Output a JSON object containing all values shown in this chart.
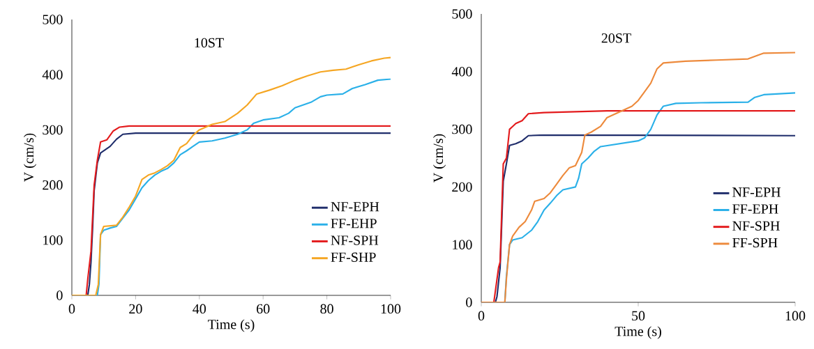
{
  "chart_data": [
    {
      "type": "line",
      "title": "10ST",
      "xlabel": "Time (s)",
      "ylabel": "V (cm/s)",
      "xlim": [
        0,
        100
      ],
      "ylim": [
        0,
        500
      ],
      "xticks": [
        0,
        20,
        40,
        60,
        80,
        100
      ],
      "yticks": [
        0,
        100,
        200,
        300,
        400,
        500
      ],
      "legend": "bottom right",
      "series": [
        {
          "name": "NF-EPH",
          "color": "#1f2d6b",
          "x": [
            0,
            5,
            5.5,
            6,
            6.5,
            7,
            8,
            9,
            10,
            12,
            14,
            16,
            20,
            40,
            100
          ],
          "values": [
            0,
            0,
            20,
            60,
            120,
            190,
            240,
            258,
            262,
            270,
            283,
            292,
            294,
            294,
            294
          ]
        },
        {
          "name": "FF-EHP",
          "color": "#2ab0e8",
          "x": [
            0,
            8,
            8.5,
            9,
            10,
            12,
            14,
            16,
            18,
            20,
            22,
            24,
            26,
            28,
            30,
            32,
            34,
            36,
            38,
            40,
            44,
            48,
            52,
            55,
            57,
            60,
            65,
            68,
            70,
            75,
            78,
            80,
            85,
            88,
            92,
            96,
            100
          ],
          "values": [
            0,
            0,
            20,
            110,
            118,
            122,
            125,
            140,
            155,
            175,
            195,
            208,
            218,
            225,
            230,
            240,
            255,
            262,
            270,
            278,
            280,
            285,
            292,
            300,
            312,
            318,
            322,
            330,
            340,
            350,
            360,
            363,
            365,
            375,
            382,
            390,
            392
          ]
        },
        {
          "name": "NF-SPH",
          "color": "#e31a1c",
          "x": [
            0,
            4.5,
            5,
            6,
            7,
            8,
            9,
            11,
            12,
            13,
            15,
            18,
            40,
            100
          ],
          "values": [
            0,
            0,
            30,
            80,
            200,
            245,
            278,
            282,
            290,
            298,
            305,
            307,
            307,
            307
          ]
        },
        {
          "name": "FF-SHP",
          "color": "#f5a623",
          "x": [
            0,
            7.5,
            8.3,
            9,
            10,
            14,
            16,
            18,
            20,
            22,
            24,
            26,
            28,
            30,
            32,
            34,
            36,
            38,
            40,
            44,
            48,
            52,
            55,
            58,
            62,
            66,
            70,
            74,
            78,
            82,
            86,
            90,
            94,
            98,
            100
          ],
          "values": [
            0,
            0,
            20,
            110,
            125,
            127,
            142,
            160,
            180,
            210,
            218,
            222,
            228,
            235,
            245,
            268,
            275,
            290,
            300,
            310,
            315,
            330,
            345,
            365,
            372,
            380,
            390,
            398,
            405,
            408,
            410,
            418,
            425,
            430,
            431
          ]
        }
      ]
    },
    {
      "type": "line",
      "title": "20ST",
      "xlabel": "Time (s)",
      "ylabel": "V (cm/s)",
      "xlim": [
        0,
        100
      ],
      "ylim": [
        0,
        500
      ],
      "xticks": [
        0,
        50,
        100
      ],
      "yticks": [
        0,
        100,
        200,
        300,
        400,
        500
      ],
      "legend": "bottom right",
      "series": [
        {
          "name": "NF-EPH",
          "color": "#1f2d6b",
          "x": [
            0,
            4.5,
            5,
            6,
            7,
            8,
            9,
            11,
            13,
            15,
            20,
            100
          ],
          "values": [
            0,
            0,
            10,
            60,
            210,
            240,
            272,
            275,
            280,
            289,
            290,
            289
          ]
        },
        {
          "name": "FF-EPH",
          "color": "#2ab0e8",
          "x": [
            0,
            7.5,
            8,
            9,
            10,
            13,
            16,
            18,
            20,
            22,
            24,
            26,
            30,
            31,
            32,
            34,
            36,
            38,
            44,
            50,
            52,
            54,
            56,
            58,
            62,
            70,
            85,
            87,
            90,
            100
          ],
          "values": [
            0,
            0,
            45,
            100,
            108,
            112,
            125,
            140,
            160,
            172,
            185,
            195,
            200,
            215,
            240,
            250,
            262,
            270,
            275,
            280,
            285,
            300,
            325,
            340,
            345,
            346,
            347,
            355,
            360,
            363
          ]
        },
        {
          "name": "NF-SPH",
          "color": "#e31a1c",
          "x": [
            0,
            4,
            4.5,
            5.5,
            6,
            7,
            8,
            9,
            10,
            11,
            13,
            15,
            20,
            40,
            100
          ],
          "values": [
            0,
            0,
            20,
            60,
            70,
            240,
            250,
            300,
            305,
            310,
            315,
            327,
            329,
            332,
            332
          ]
        },
        {
          "name": "FF-SPH",
          "color": "#ed8a3c",
          "x": [
            0,
            7.5,
            8,
            9,
            10,
            12,
            14,
            16,
            17,
            20,
            22,
            24,
            26,
            28,
            30,
            32,
            33,
            35,
            38,
            40,
            44,
            48,
            50,
            52,
            54,
            56,
            58,
            65,
            75,
            85,
            88,
            90,
            100
          ],
          "values": [
            0,
            0,
            40,
            100,
            115,
            130,
            140,
            160,
            175,
            180,
            190,
            205,
            220,
            233,
            237,
            260,
            290,
            295,
            305,
            320,
            330,
            340,
            350,
            365,
            380,
            405,
            415,
            418,
            420,
            422,
            428,
            432,
            433
          ]
        }
      ]
    }
  ]
}
